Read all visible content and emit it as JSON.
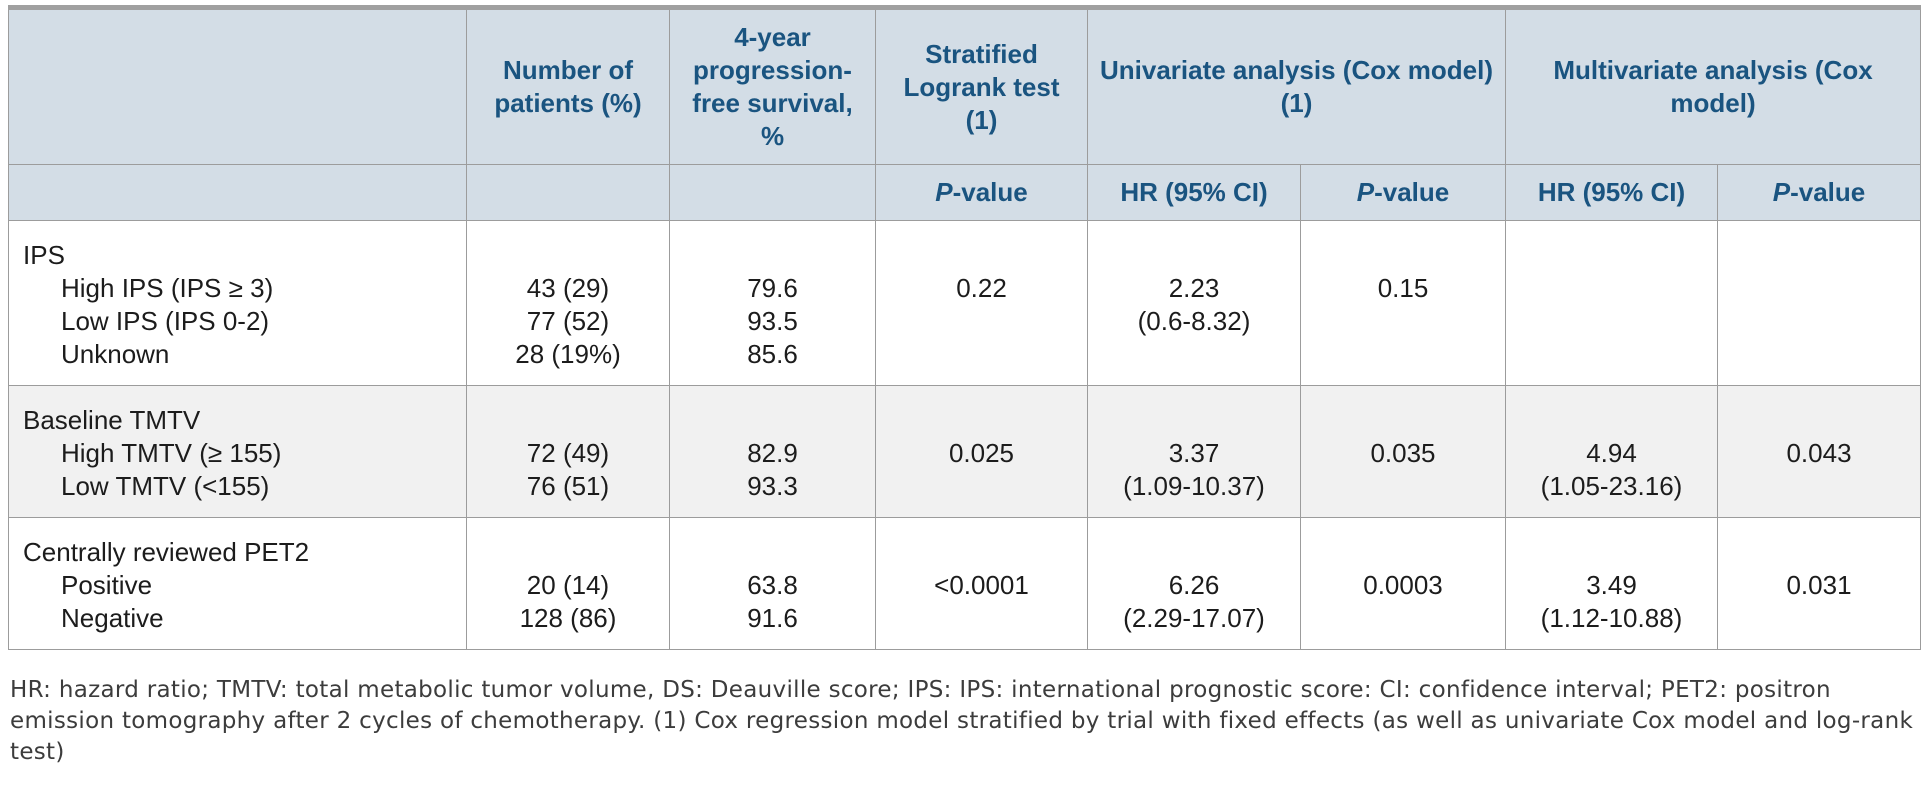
{
  "header": {
    "row1": [
      {
        "label": ""
      },
      {
        "label": "Number of patients (%)"
      },
      {
        "label": "4-year progression-free survival, %"
      },
      {
        "label": "Stratified Logrank test (1)"
      },
      {
        "label": "Univariate analysis (Cox model) (1)"
      },
      {
        "label": "Multivariate analysis (Cox model)"
      }
    ],
    "row2": [
      {
        "text": ""
      },
      {
        "text": ""
      },
      {
        "text": ""
      },
      {
        "italic_prefix": "P",
        "text": "-value"
      },
      {
        "text": "HR (95% CI)"
      },
      {
        "italic_prefix": "P",
        "text": "-value"
      },
      {
        "text": "HR (95% CI)"
      },
      {
        "italic_prefix": "P",
        "text": "-value"
      }
    ]
  },
  "sections": [
    {
      "name": "ips",
      "zebra": false,
      "rows": [
        {
          "label": "IPS",
          "indent": false,
          "patients": "",
          "survival": "",
          "logrank_p": "",
          "uni_hr": "",
          "uni_p": "",
          "multi_hr": "",
          "multi_p": ""
        },
        {
          "label": "High IPS (IPS ≥ 3)",
          "indent": true,
          "patients": "43 (29)",
          "survival": "79.6",
          "logrank_p": "0.22",
          "uni_hr": "2.23",
          "uni_p": "0.15",
          "multi_hr": "",
          "multi_p": ""
        },
        {
          "label": "Low IPS (IPS 0-2)",
          "indent": true,
          "patients": "77 (52)",
          "survival": "93.5",
          "logrank_p": "",
          "uni_hr": "(0.6-8.32)",
          "uni_p": "",
          "multi_hr": "",
          "multi_p": ""
        },
        {
          "label": "Unknown",
          "indent": true,
          "patients": "28 (19%)",
          "survival": "85.6",
          "logrank_p": "",
          "uni_hr": "",
          "uni_p": "",
          "multi_hr": "",
          "multi_p": ""
        }
      ]
    },
    {
      "name": "baseline-tmtv",
      "zebra": true,
      "rows": [
        {
          "label": "Baseline TMTV",
          "indent": false,
          "patients": "",
          "survival": "",
          "logrank_p": "",
          "uni_hr": "",
          "uni_p": "",
          "multi_hr": "",
          "multi_p": ""
        },
        {
          "label": "High TMTV (≥ 155)",
          "indent": true,
          "patients": "72 (49)",
          "survival": "82.9",
          "logrank_p": "0.025",
          "uni_hr": "3.37",
          "uni_p": "0.035",
          "multi_hr": "4.94",
          "multi_p": "0.043"
        },
        {
          "label": "Low TMTV (<155)",
          "indent": true,
          "patients": "76 (51)",
          "survival": "93.3",
          "logrank_p": "",
          "uni_hr": "(1.09-10.37)",
          "uni_p": "",
          "multi_hr": "(1.05-23.16)",
          "multi_p": ""
        }
      ]
    },
    {
      "name": "pet2",
      "zebra": false,
      "rows": [
        {
          "label": "Centrally reviewed PET2",
          "indent": false,
          "patients": "",
          "survival": "",
          "logrank_p": "",
          "uni_hr": "",
          "uni_p": "",
          "multi_hr": "",
          "multi_p": ""
        },
        {
          "label": "Positive",
          "indent": true,
          "patients": "20 (14)",
          "survival": "63.8",
          "logrank_p": "<0.0001",
          "uni_hr": "6.26",
          "uni_p": "0.0003",
          "multi_hr": "3.49",
          "multi_p": "0.031"
        },
        {
          "label": "Negative",
          "indent": true,
          "patients": "128 (86)",
          "survival": "91.6",
          "logrank_p": "",
          "uni_hr": "(2.29-17.07)",
          "uni_p": "",
          "multi_hr": "(1.12-10.88)",
          "multi_p": ""
        }
      ]
    }
  ],
  "footnote": "HR: hazard ratio; TMTV: total metabolic tumor volume, DS: Deauville score; IPS: IPS: international prognostic score: CI: confidence interval; PET2: positron emission tomography after 2 cycles of chemotherapy. (1) Cox regression model stratified by trial with fixed effects (as well as univariate Cox model and log-rank test)"
}
